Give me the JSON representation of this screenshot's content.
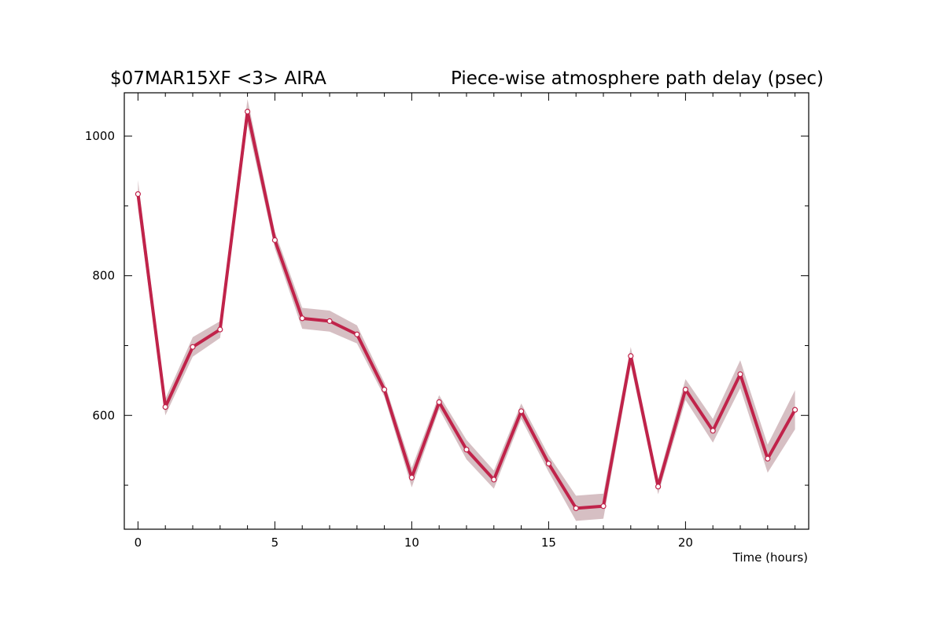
{
  "chart_data": {
    "type": "line",
    "title_left": "$07MAR15XF <3>  AIRA",
    "title_right": "Piece-wise atmosphere path delay (psec)",
    "xlabel": "Time (hours)",
    "ylabel": "",
    "xlim": [
      -0.5,
      24.5
    ],
    "ylim": [
      437,
      1062
    ],
    "x_ticks": [
      0,
      5,
      10,
      15,
      20
    ],
    "y_ticks": [
      600,
      800,
      1000
    ],
    "x_minor_ticks": [
      1,
      2,
      3,
      4,
      6,
      7,
      8,
      9,
      11,
      12,
      13,
      14,
      16,
      17,
      18,
      19,
      21,
      22,
      23,
      24
    ],
    "y_minor_ticks": [
      500,
      700,
      900
    ],
    "grid": false,
    "colors": {
      "line": "#c0234a",
      "band": "#d6bfc3",
      "marker_fill": "#ffffff",
      "axis": "#000000"
    },
    "series": [
      {
        "x": [
          0,
          1,
          2,
          3,
          4,
          5,
          6,
          7,
          8,
          9,
          10,
          11,
          12,
          13,
          14,
          15,
          16,
          17,
          18,
          19,
          20,
          21,
          22,
          23,
          24
        ],
        "values": [
          917,
          612,
          698,
          723,
          1035,
          851,
          739,
          735,
          716,
          637,
          511,
          619,
          551,
          508,
          606,
          531,
          467,
          470,
          685,
          498,
          637,
          578,
          659,
          538,
          608
        ],
        "uncertainty": [
          20,
          12,
          14,
          12,
          18,
          12,
          15,
          15,
          13,
          10,
          14,
          10,
          14,
          13,
          11,
          12,
          18,
          18,
          13,
          11,
          15,
          17,
          20,
          20,
          28
        ]
      }
    ]
  }
}
